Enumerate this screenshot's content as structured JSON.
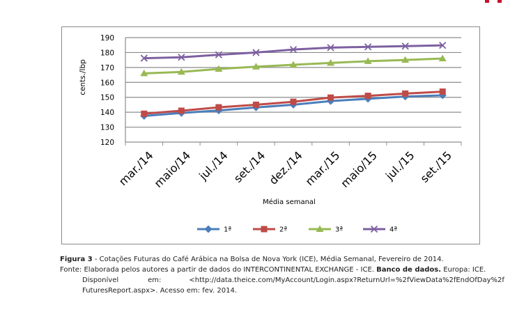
{
  "chart_data": {
    "type": "line",
    "categories": [
      "mar./14",
      "maio/14",
      "jul./14",
      "set./14",
      "dez./14",
      "mar./15",
      "maio/15",
      "jul./15",
      "set./15"
    ],
    "xlabel": "Média semanal",
    "ylabel": "cents./lbp",
    "ylim": [
      120,
      190
    ],
    "yticks": [
      120,
      130,
      140,
      150,
      160,
      170,
      180,
      190
    ],
    "grid": true,
    "legend_position": "bottom",
    "series": [
      {
        "name": "1ª",
        "color": "#4a7ebb",
        "marker": "diamond",
        "values": [
          137.5,
          139.5,
          141.2,
          143.2,
          145.0,
          147.5,
          149.0,
          150.5,
          151.3
        ]
      },
      {
        "name": "2ª",
        "color": "#be4b48",
        "marker": "square",
        "values": [
          139.0,
          141.0,
          143.3,
          145.0,
          147.0,
          149.8,
          151.0,
          152.5,
          153.8
        ]
      },
      {
        "name": "3ª",
        "color": "#98b954",
        "marker": "triangle",
        "values": [
          166.0,
          167.0,
          169.0,
          170.5,
          171.8,
          173.0,
          174.2,
          175.0,
          176.0
        ]
      },
      {
        "name": "4ª",
        "color": "#7d60a0",
        "marker": "x",
        "values": [
          176.2,
          176.8,
          178.5,
          180.0,
          182.0,
          183.3,
          183.8,
          184.3,
          184.8
        ]
      }
    ]
  },
  "caption": {
    "figure_label": "Figura 3",
    "figure_text": " - Cotações Futuras do Café Arábica na Bolsa de Nova York (ICE), Média Semanal, Fevereiro de 2014.",
    "source_line1_a": "Fonte: Elaborada pelos autores a partir de dados do INTERCONTINENTAL EXCHANGE - ICE. ",
    "source_line1_b": "Banco de dados.",
    "source_line1_c": " Europa: ICE.",
    "source_line2_a": "Disponível",
    "source_line2_b": "em:",
    "source_line2_c": "<http://data.theice.com/MyAccount/Login.aspx?ReturnUrl=%2fViewData%2fEndOfDay%2f",
    "source_line3": "FuturesReport.aspx>. Acesso em: fev. 2014."
  },
  "colors": {
    "grid": "#8c8c8c",
    "text": "#000000",
    "accent_mark": "#c8102e"
  }
}
